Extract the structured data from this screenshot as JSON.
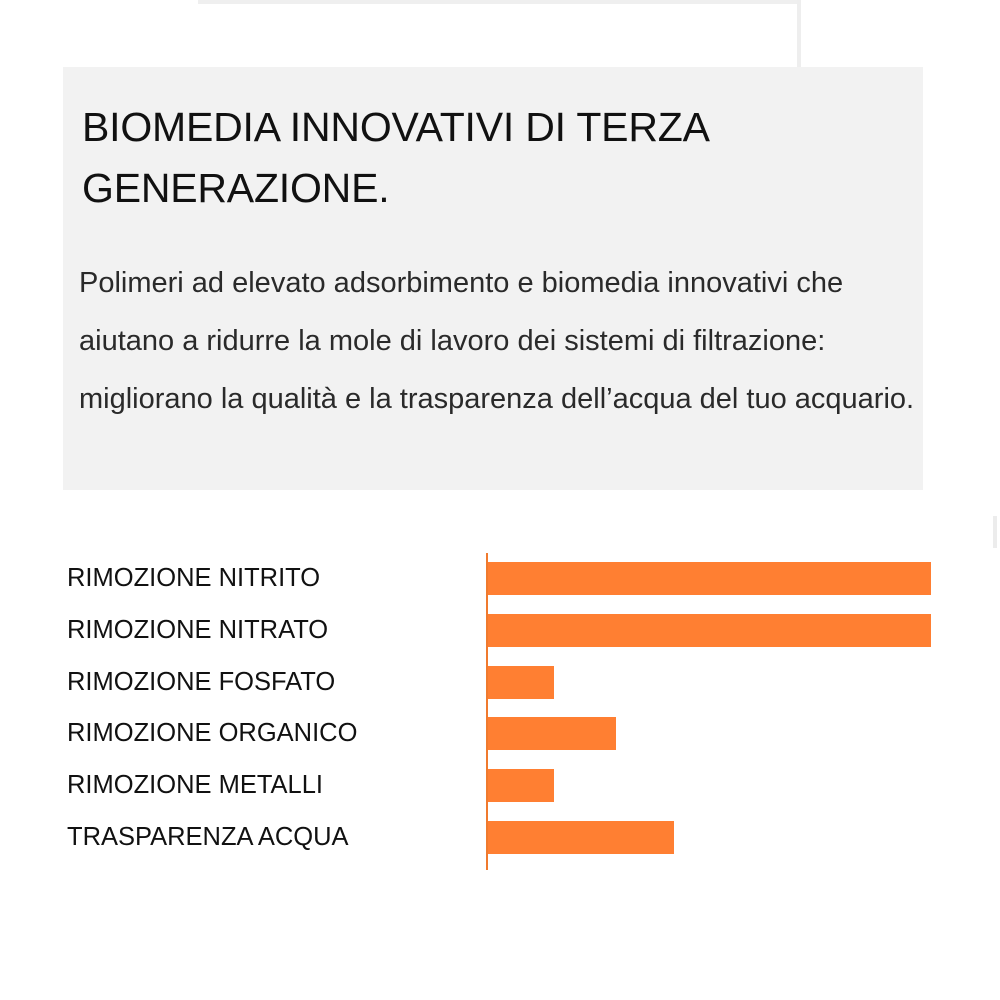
{
  "intro": {
    "title": "BIOMEDIA INNOVATIVI DI TERZA GENERAZIONE.",
    "body": "Polimeri ad elevato adsorbimento e biomedia innovativi che aiutano a ridurre la mole di lavoro dei sistemi di filtrazione: migliorano la qualità e la trasparenza dell’acqua del tuo acquario."
  },
  "colors": {
    "bar": "#ff7f32",
    "axis": "#f07a2e",
    "intro_background": "#f2f2f2"
  },
  "chart_data": {
    "type": "bar",
    "orientation": "horizontal",
    "title": "",
    "xlabel": "",
    "ylabel": "",
    "categories": [
      "RIMOZIONE NITRITO",
      "RIMOZIONE NITRATO",
      "RIMOZIONE FOSFATO",
      "RIMOZIONE ORGANICO",
      "RIMOZIONE METALLI",
      "TRASPARENZA ACQUA"
    ],
    "values": [
      100,
      100,
      15,
      29,
      15,
      42
    ],
    "xlim": [
      0,
      100
    ],
    "grid": false,
    "legend": null,
    "value_axis_visible": false
  }
}
